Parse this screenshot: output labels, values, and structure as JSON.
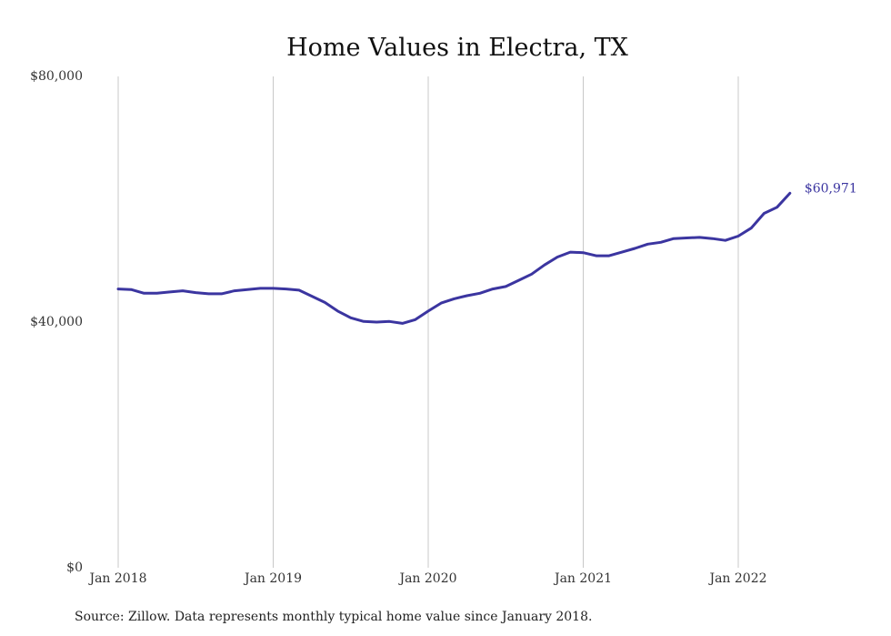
{
  "colors": {
    "series": "#3b35a0",
    "grid": "#c8c8c8",
    "text": "#111111"
  },
  "chart_data": {
    "type": "line",
    "title": "Home Values in Electra, TX",
    "xlabel": "",
    "ylabel": "",
    "ylim": [
      0,
      80000
    ],
    "y_ticks": [
      {
        "value": 0,
        "label": "$0"
      },
      {
        "value": 40000,
        "label": "$40,000"
      },
      {
        "value": 80000,
        "label": "$80,000"
      }
    ],
    "x_ticks": [
      {
        "value": "2018-01",
        "label": "Jan 2018"
      },
      {
        "value": "2019-01",
        "label": "Jan 2019"
      },
      {
        "value": "2020-01",
        "label": "Jan 2020"
      },
      {
        "value": "2021-01",
        "label": "Jan 2021"
      },
      {
        "value": "2022-01",
        "label": "Jan 2022"
      }
    ],
    "xlim": [
      "2018-01",
      "2022-06"
    ],
    "grid": "vertical",
    "series": [
      {
        "color": "#3b35a0",
        "x": [
          "2018-01",
          "2018-02",
          "2018-03",
          "2018-04",
          "2018-05",
          "2018-06",
          "2018-07",
          "2018-08",
          "2018-09",
          "2018-10",
          "2018-11",
          "2018-12",
          "2019-01",
          "2019-02",
          "2019-03",
          "2019-04",
          "2019-05",
          "2019-06",
          "2019-07",
          "2019-08",
          "2019-09",
          "2019-10",
          "2019-11",
          "2019-12",
          "2020-01",
          "2020-02",
          "2020-03",
          "2020-04",
          "2020-05",
          "2020-06",
          "2020-07",
          "2020-08",
          "2020-09",
          "2020-10",
          "2020-11",
          "2020-12",
          "2021-01",
          "2021-02",
          "2021-03",
          "2021-04",
          "2021-05",
          "2021-06",
          "2021-07",
          "2021-08",
          "2021-09",
          "2021-10",
          "2021-11",
          "2021-12",
          "2022-01",
          "2022-02",
          "2022-03",
          "2022-04",
          "2022-05"
        ],
        "values": [
          45400,
          45300,
          44700,
          44700,
          44900,
          45100,
          44800,
          44600,
          44600,
          45100,
          45300,
          45500,
          45500,
          45400,
          45200,
          44200,
          43200,
          41800,
          40700,
          40100,
          40000,
          40100,
          39800,
          40400,
          41800,
          43100,
          43800,
          44300,
          44700,
          45400,
          45800,
          46800,
          47800,
          49300,
          50600,
          51400,
          51300,
          50800,
          50800,
          51400,
          52000,
          52700,
          53000,
          53600,
          53700,
          53800,
          53600,
          53300,
          54000,
          55300,
          57700,
          58700,
          60971
        ]
      }
    ],
    "annotations": [
      {
        "text": "$60,971",
        "at": "2022-05",
        "value": 60971
      }
    ]
  },
  "source_note": "Source: Zillow. Data represents monthly typical home value since January 2018."
}
